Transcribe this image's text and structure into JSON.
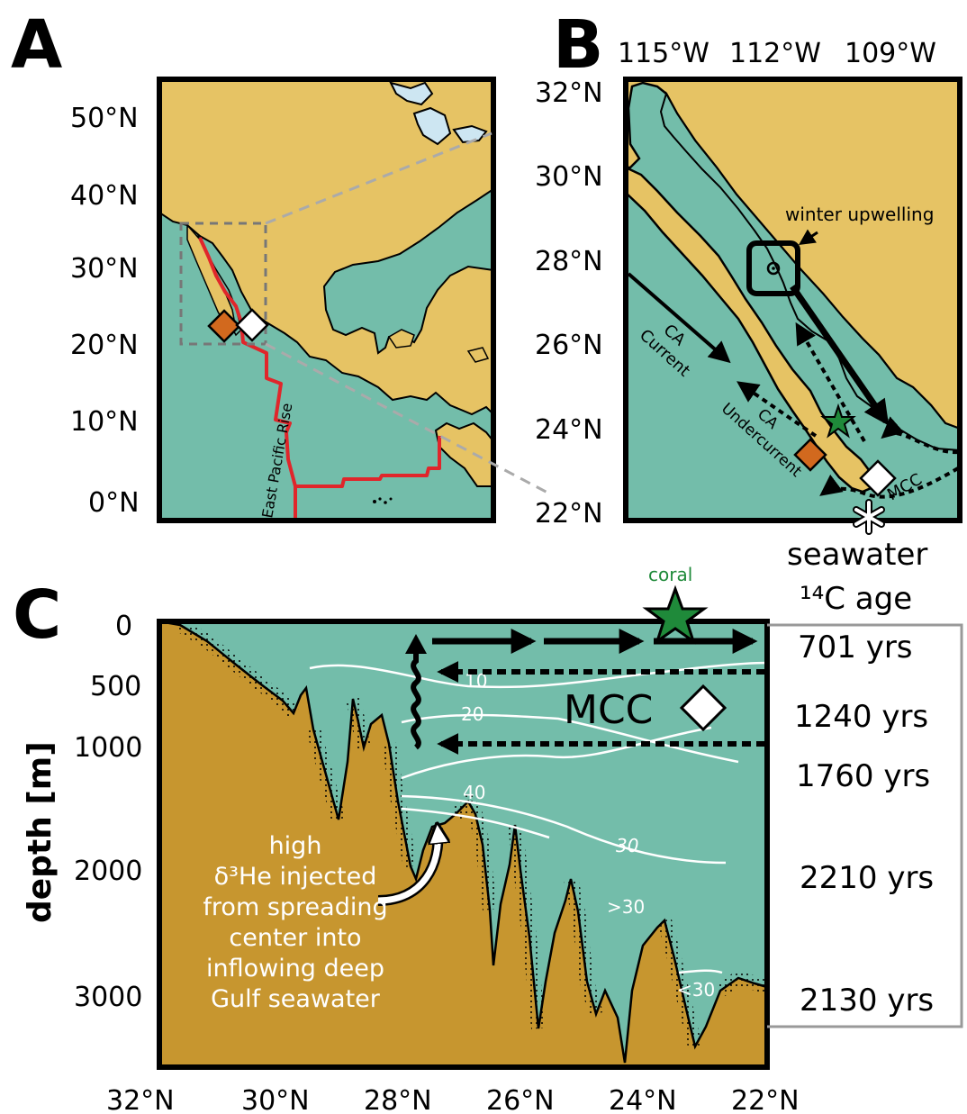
{
  "colors": {
    "land": "#e6c364",
    "ocean": "#73bdaa",
    "seafloor": "#c7962f",
    "ridge": "#e0262b",
    "coral": "#1f8a3a",
    "orange_site": "#d2691e",
    "box_gray": "#999999"
  },
  "panelA": {
    "letter": "A",
    "lat_labels": [
      "50°N",
      "40°N",
      "30°N",
      "20°N",
      "10°N",
      "0°N"
    ],
    "ridge_label": "East Pacific Rise"
  },
  "panelB": {
    "letter": "B",
    "lon_labels": [
      "115°W",
      "112°W",
      "109°W"
    ],
    "lat_labels": [
      "32°N",
      "30°N",
      "28°N",
      "26°N",
      "24°N",
      "22°N"
    ],
    "upwelling_label": "winter upwelling",
    "ca_current": [
      "CA",
      "Current"
    ],
    "ca_undercurrent": [
      "CA",
      "Undercurrent"
    ],
    "mcc_label": "MCC",
    "marker_icons": [
      "star-icon",
      "diamond-icon",
      "asterisk-icon"
    ]
  },
  "panelC": {
    "letter": "C",
    "ylabel": "depth [m]",
    "depth_ticks": [
      "0",
      "500",
      "1000",
      "2000",
      "3000"
    ],
    "lat_ticks": [
      "32°N",
      "30°N",
      "28°N",
      "26°N",
      "24°N",
      "22°N"
    ],
    "coral_label": "coral",
    "mcc_label": "MCC",
    "contours": [
      "10",
      "20",
      "40",
      "30",
      ">30",
      "<30"
    ],
    "annotation": [
      "high",
      "δ³He injected",
      "from spreading",
      "center into",
      "inflowing deep",
      "Gulf seawater"
    ]
  },
  "seawater_age": {
    "title": [
      "seawater",
      "¹⁴C age"
    ],
    "ages": [
      "701 yrs",
      "1240 yrs",
      "1760 yrs",
      "2210 yrs",
      "2130 yrs"
    ]
  }
}
